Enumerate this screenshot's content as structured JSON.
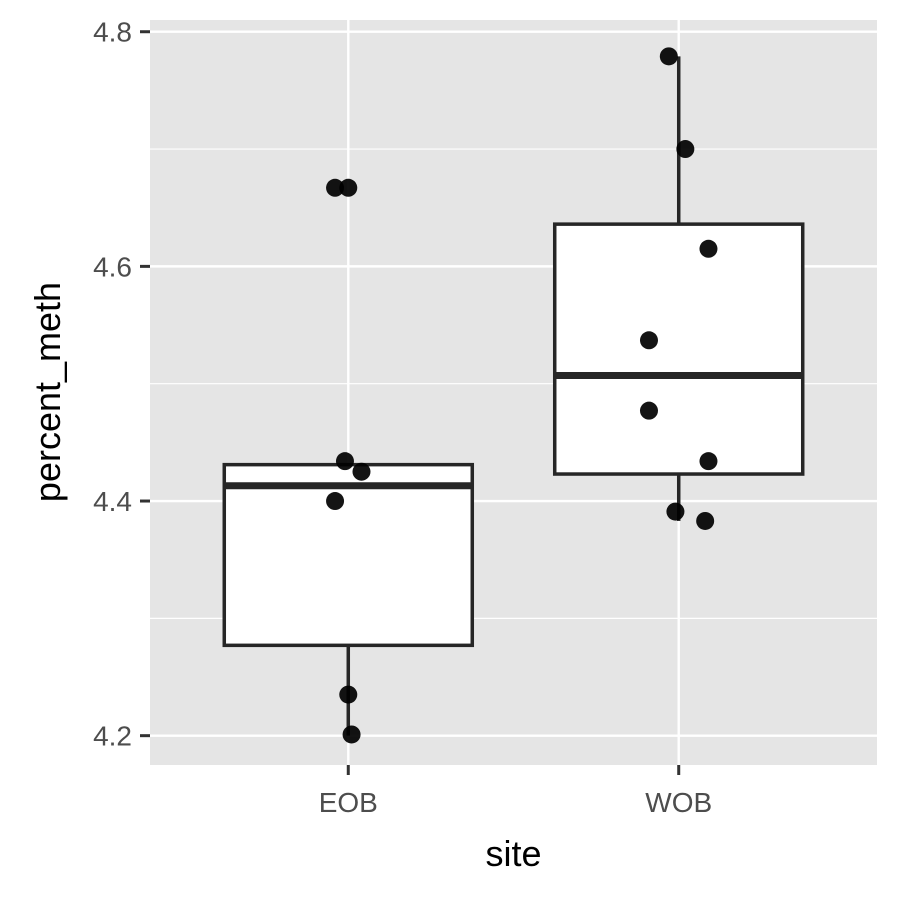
{
  "chart_data": {
    "type": "boxplot",
    "xlabel": "site",
    "ylabel": "percent_meth",
    "categories": [
      "EOB",
      "WOB"
    ],
    "ylim": [
      4.175,
      4.81
    ],
    "y_ticks": [
      4.2,
      4.4,
      4.6,
      4.8
    ],
    "y_tick_labels": [
      "4.2",
      "4.4",
      "4.6",
      "4.8"
    ],
    "y_minor_ticks": [
      4.3,
      4.5,
      4.7
    ],
    "grid": true,
    "panel_background": "#e5e5e5",
    "grid_color": "#ffffff",
    "box_fill": "#ffffff",
    "box_stroke": "#262626",
    "point_color": "#000000",
    "boxes": [
      {
        "category": "EOB",
        "whisker_low": 4.2,
        "q1": 4.277,
        "median": 4.413,
        "q3": 4.431,
        "whisker_high": 4.431
      },
      {
        "category": "WOB",
        "whisker_low": 4.383,
        "q1": 4.423,
        "median": 4.507,
        "q3": 4.636,
        "whisker_high": 4.779
      }
    ],
    "points": [
      {
        "category": "EOB",
        "offset": -0.04,
        "y": 4.667
      },
      {
        "category": "EOB",
        "offset": 0.0,
        "y": 4.667
      },
      {
        "category": "EOB",
        "offset": -0.01,
        "y": 4.434
      },
      {
        "category": "EOB",
        "offset": 0.04,
        "y": 4.425
      },
      {
        "category": "EOB",
        "offset": -0.04,
        "y": 4.4
      },
      {
        "category": "EOB",
        "offset": 0.0,
        "y": 4.235
      },
      {
        "category": "EOB",
        "offset": 0.01,
        "y": 4.201
      },
      {
        "category": "WOB",
        "offset": -0.03,
        "y": 4.779
      },
      {
        "category": "WOB",
        "offset": 0.02,
        "y": 4.7
      },
      {
        "category": "WOB",
        "offset": 0.09,
        "y": 4.615
      },
      {
        "category": "WOB",
        "offset": -0.09,
        "y": 4.537
      },
      {
        "category": "WOB",
        "offset": -0.09,
        "y": 4.477
      },
      {
        "category": "WOB",
        "offset": 0.09,
        "y": 4.434
      },
      {
        "category": "WOB",
        "offset": -0.01,
        "y": 4.391
      },
      {
        "category": "WOB",
        "offset": 0.08,
        "y": 4.383
      }
    ]
  }
}
